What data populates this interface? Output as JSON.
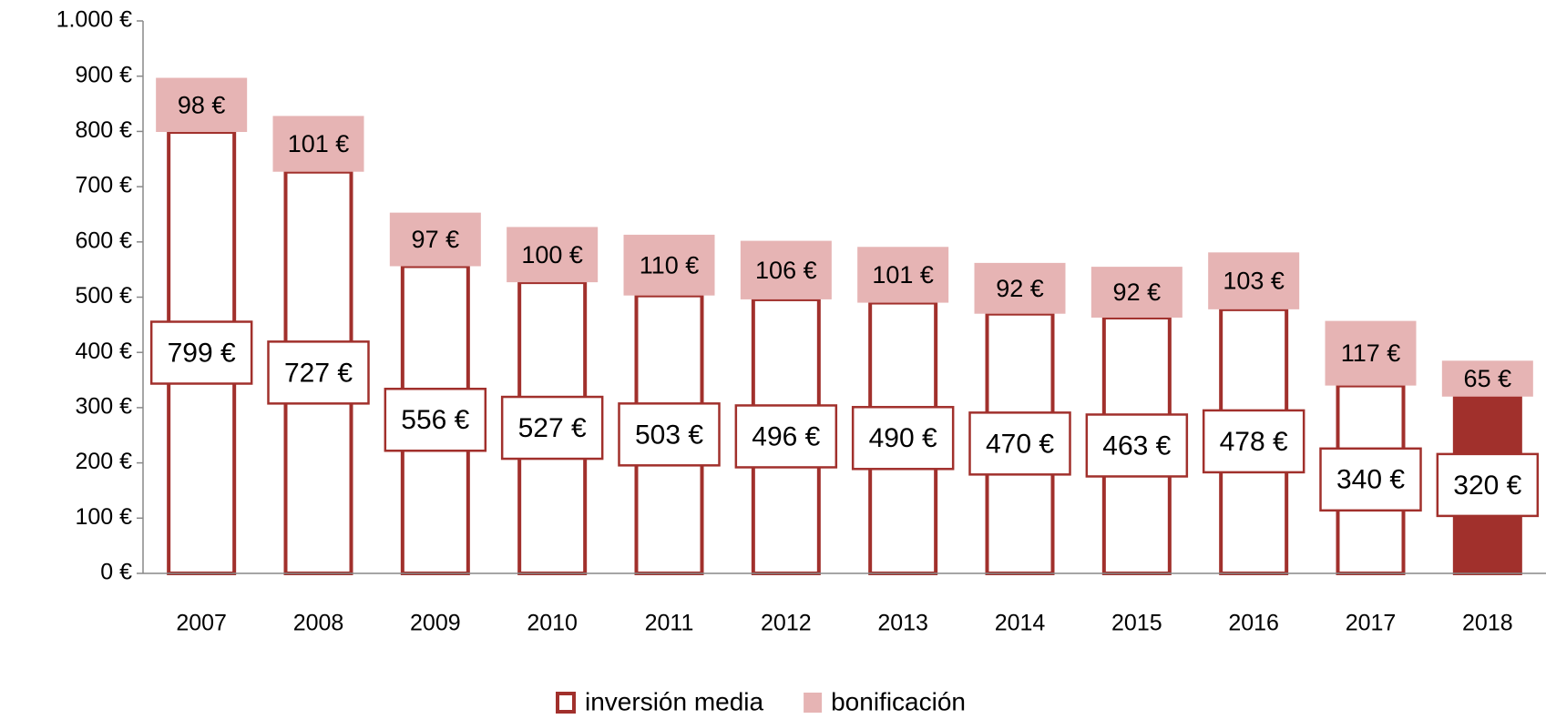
{
  "chart_data": {
    "type": "stacked_bar",
    "categories": [
      "2007",
      "2008",
      "2009",
      "2010",
      "2011",
      "2012",
      "2013",
      "2014",
      "2015",
      "2016",
      "2017",
      "2018"
    ],
    "series": [
      {
        "name": "inversión media",
        "color": "#a1302c",
        "fills": [
          "#ffffff",
          "#ffffff",
          "#ffffff",
          "#ffffff",
          "#ffffff",
          "#ffffff",
          "#ffffff",
          "#ffffff",
          "#ffffff",
          "#ffffff",
          "#ffffff",
          "#a1302c"
        ],
        "values": [
          799,
          727,
          556,
          527,
          503,
          496,
          490,
          470,
          463,
          478,
          340,
          320
        ],
        "value_labels": [
          "799 €",
          "727 €",
          "556 €",
          "527 €",
          "503 €",
          "496 €",
          "490 €",
          "470 €",
          "463 €",
          "478 €",
          "340 €",
          "320 €"
        ]
      },
      {
        "name": "bonificación",
        "color": "#e6b4b4",
        "values": [
          98,
          101,
          97,
          100,
          110,
          106,
          101,
          92,
          92,
          103,
          117,
          65
        ],
        "value_labels": [
          "98 €",
          "101 €",
          "97 €",
          "100 €",
          "110 €",
          "106 €",
          "101 €",
          "92 €",
          "92 €",
          "103 €",
          "117 €",
          "65 €"
        ]
      }
    ],
    "ylim": [
      0,
      1000
    ],
    "yticks": [
      {
        "value": 0,
        "label": "0 €"
      },
      {
        "value": 100,
        "label": "100 €"
      },
      {
        "value": 200,
        "label": "200 €"
      },
      {
        "value": 300,
        "label": "300 €"
      },
      {
        "value": 400,
        "label": "400 €"
      },
      {
        "value": 500,
        "label": "500 €"
      },
      {
        "value": 600,
        "label": "600 €"
      },
      {
        "value": 700,
        "label": "700 €"
      },
      {
        "value": 800,
        "label": "800 €"
      },
      {
        "value": 900,
        "label": "900 €"
      },
      {
        "value": 1000,
        "label": "1.000 €"
      }
    ],
    "legend": "bottom"
  }
}
